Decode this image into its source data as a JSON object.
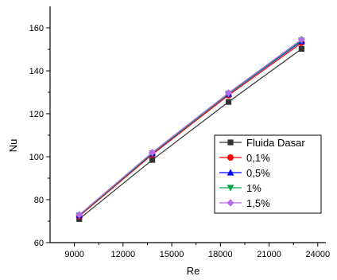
{
  "chart_data": {
    "type": "line",
    "title": "",
    "xlabel": "Re",
    "ylabel": "Nu",
    "xlim": [
      7500,
      24500
    ],
    "ylim": [
      60,
      170
    ],
    "xticks": [
      9000,
      12000,
      15000,
      18000,
      21000,
      24000
    ],
    "yticks": [
      60,
      80,
      100,
      120,
      140,
      160
    ],
    "x": [
      9300,
      13800,
      18500,
      23000
    ],
    "legend_position": "right",
    "series": [
      {
        "name": "Fluida Dasar",
        "color": "#333333",
        "marker": "square",
        "values": [
          71.0,
          98.5,
          125.5,
          150.2
        ]
      },
      {
        "name": "0,1%",
        "color": "#ff0000",
        "marker": "circle",
        "values": [
          72.3,
          101.0,
          128.6,
          153.0
        ]
      },
      {
        "name": "0,5%",
        "color": "#0000ff",
        "marker": "triangle-up",
        "values": [
          72.7,
          101.5,
          129.2,
          153.8
        ]
      },
      {
        "name": "1%",
        "color": "#00a650",
        "marker": "triangle-down",
        "values": [
          72.7,
          101.6,
          129.3,
          154.1
        ]
      },
      {
        "name": "1,5%",
        "color": "#b36be6",
        "marker": "diamond",
        "values": [
          73.0,
          102.0,
          129.7,
          154.6
        ]
      }
    ]
  }
}
